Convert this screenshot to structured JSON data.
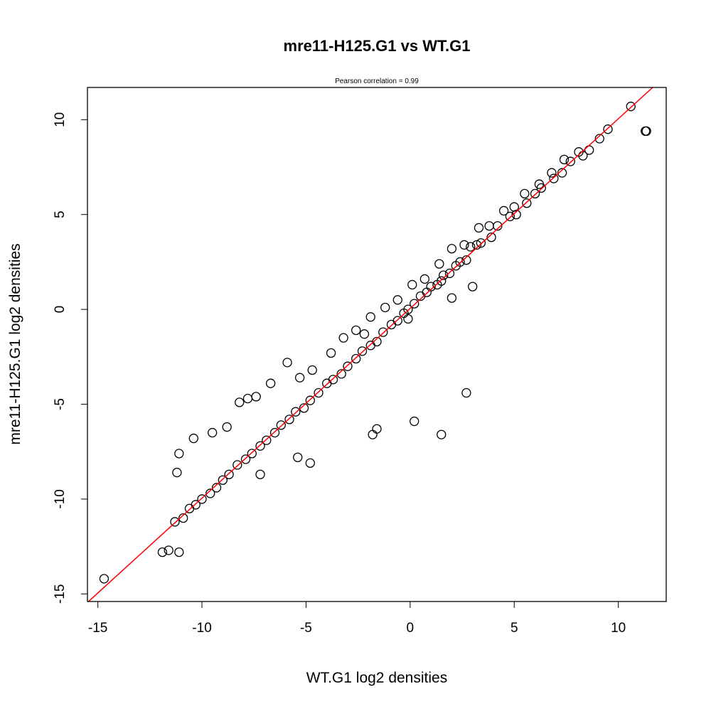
{
  "chart_data": {
    "type": "scatter",
    "title": "mre11-H125.G1 vs WT.G1",
    "subtitle": "Pearson correlation =  0.99",
    "xlabel": "WT.G1 log2 densities",
    "ylabel": "mre11-H125.G1 log2 densities",
    "xlim": [
      -15.5,
      12.3
    ],
    "ylim": [
      -15.4,
      11.7
    ],
    "xticks": [
      -15,
      -10,
      -5,
      0,
      5,
      10
    ],
    "yticks": [
      -15,
      -10,
      -5,
      0,
      5,
      10
    ],
    "xtick_labels": [
      "-15",
      "-10",
      "-5",
      "0",
      "5",
      "10"
    ],
    "ytick_labels": [
      "-15",
      "-10",
      "-5",
      "0",
      "5",
      "10"
    ],
    "grid": false,
    "marker": "open-circle",
    "point_color": "#000000",
    "fit_line": {
      "color": "#ff0000",
      "intercept": 0.05,
      "slope": 1.0
    },
    "points": {
      "x": [
        -14.7,
        -11.9,
        -11.6,
        -11.1,
        10.6,
        11.3,
        11.35,
        9.5,
        9.1,
        8.6,
        8.3,
        7.7,
        7.3,
        6.9,
        6.3,
        6.0,
        5.6,
        5.1,
        4.8,
        4.2,
        3.9,
        3.4,
        3.2,
        2.9,
        2.7,
        2.4,
        2.2,
        1.9,
        1.6,
        1.5,
        1.3,
        1.0,
        0.8,
        0.5,
        0.2,
        -0.1,
        -0.3,
        -0.6,
        -0.9,
        -1.3,
        -1.6,
        -1.9,
        -2.3,
        -2.6,
        -3.0,
        -3.3,
        -3.7,
        -4.0,
        -4.4,
        -4.8,
        -5.1,
        -5.5,
        -5.8,
        -6.2,
        -6.5,
        -6.9,
        -7.2,
        -7.6,
        -7.9,
        -8.3,
        -8.7,
        -9.0,
        -9.3,
        -9.6,
        -10.0,
        -10.3,
        -10.6,
        -10.9,
        -11.3,
        -11.2,
        -11.1,
        -10.4,
        -9.5,
        -8.8,
        -8.2,
        -7.8,
        -7.4,
        -6.7,
        -5.9,
        -5.3,
        -4.7,
        -3.8,
        -3.2,
        -2.6,
        -1.9,
        -1.2,
        -0.6,
        0.1,
        0.7,
        1.4,
        2.0,
        2.6,
        3.3,
        3.8,
        4.5,
        5.0,
        5.5,
        6.2,
        6.8,
        7.4,
        8.1,
        2.7,
        1.5,
        0.2,
        -1.6,
        -1.8,
        -4.8,
        -5.4,
        -7.2,
        -2.2,
        -0.1,
        2.0,
        3.0
      ],
      "y": [
        -14.2,
        -12.8,
        -12.7,
        -12.8,
        10.7,
        9.4,
        9.4,
        9.5,
        9.0,
        8.4,
        8.1,
        7.8,
        7.2,
        6.9,
        6.4,
        6.1,
        5.6,
        5.0,
        4.9,
        4.4,
        3.8,
        3.5,
        3.4,
        3.3,
        2.6,
        2.5,
        2.3,
        1.9,
        1.8,
        1.5,
        1.3,
        1.2,
        0.9,
        0.7,
        0.3,
        0.0,
        -0.2,
        -0.6,
        -0.8,
        -1.2,
        -1.7,
        -1.9,
        -2.2,
        -2.6,
        -3.0,
        -3.4,
        -3.7,
        -3.9,
        -4.4,
        -4.8,
        -5.2,
        -5.4,
        -5.8,
        -6.1,
        -6.5,
        -6.9,
        -7.2,
        -7.6,
        -7.9,
        -8.2,
        -8.7,
        -9.0,
        -9.4,
        -9.7,
        -10.0,
        -10.3,
        -10.5,
        -11.0,
        -11.2,
        -8.6,
        -7.6,
        -6.8,
        -6.5,
        -6.2,
        -4.9,
        -4.7,
        -4.6,
        -3.9,
        -2.8,
        -3.6,
        -3.2,
        -2.3,
        -1.5,
        -1.1,
        -0.4,
        0.1,
        0.5,
        1.3,
        1.6,
        2.4,
        3.2,
        3.4,
        4.3,
        4.4,
        5.2,
        5.4,
        6.1,
        6.6,
        7.2,
        7.9,
        8.3,
        -4.4,
        -6.6,
        -5.9,
        -6.3,
        -6.6,
        -8.1,
        -7.8,
        -8.7,
        -1.3,
        -0.5,
        0.6,
        1.2
      ]
    }
  }
}
